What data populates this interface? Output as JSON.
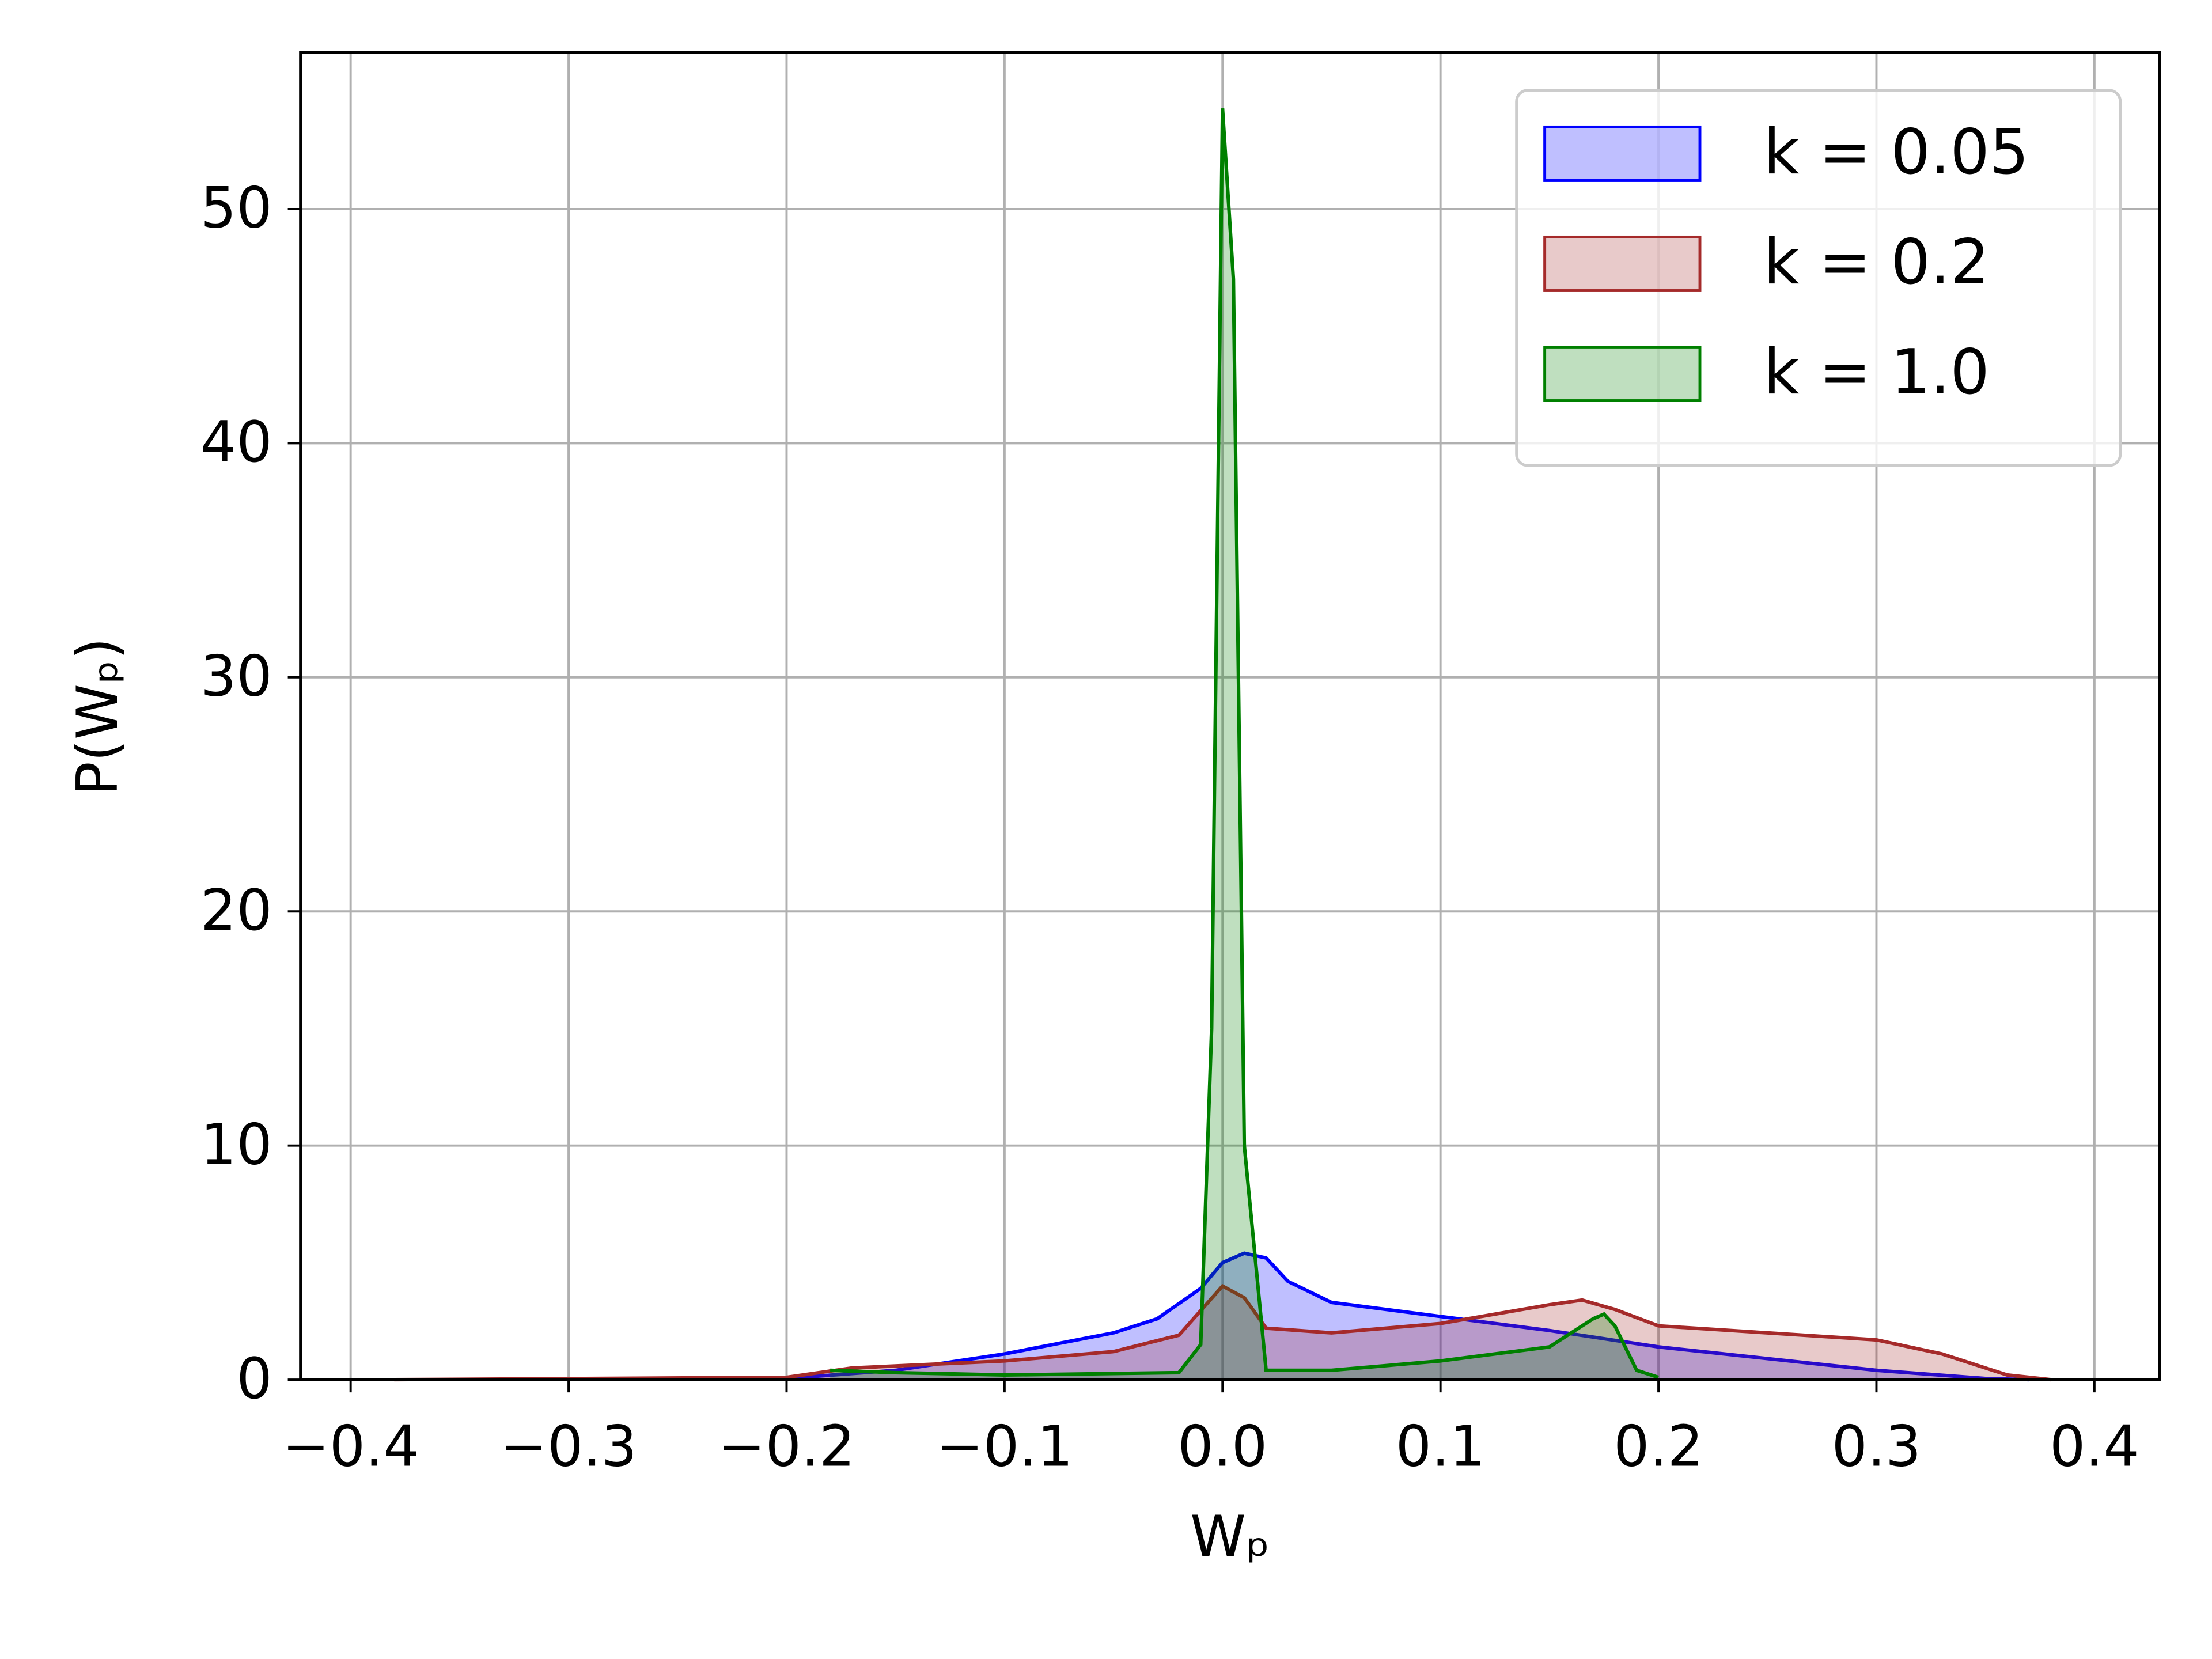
{
  "chart_data": {
    "type": "area",
    "xlabel": "Wₚ",
    "ylabel": "P(Wₚ)",
    "xlim": [
      -0.423,
      0.43
    ],
    "ylim": [
      0,
      56.7
    ],
    "xticks": [
      {
        "value": -0.4,
        "label": "−0.4"
      },
      {
        "value": -0.3,
        "label": "−0.3"
      },
      {
        "value": -0.2,
        "label": "−0.2"
      },
      {
        "value": -0.1,
        "label": "−0.1"
      },
      {
        "value": 0,
        "label": "0.0"
      },
      0.1,
      0.2,
      0.3,
      0.4
    ],
    "yticks": [
      0,
      10,
      20,
      30,
      40,
      50
    ],
    "grid": true,
    "legend": "upper right",
    "series": [
      {
        "name": "k = 0.05",
        "color": "#0000ff",
        "x": [
          -0.2,
          -0.15,
          -0.1,
          -0.05,
          -0.03,
          -0.01,
          0,
          0.01,
          0.02,
          0.03,
          0.05,
          0.1,
          0.15,
          0.2,
          0.25,
          0.3,
          0.35,
          0.37
        ],
        "values": [
          0.05,
          0.4,
          1.1,
          2.0,
          2.6,
          3.9,
          5.0,
          5.4,
          5.2,
          4.2,
          3.3,
          2.7,
          2.1,
          1.4,
          0.9,
          0.4,
          0.05,
          0
        ]
      },
      {
        "name": "k = 0.2",
        "color": "#a52a2a",
        "x": [
          -0.38,
          -0.2,
          -0.17,
          -0.1,
          -0.05,
          -0.02,
          0,
          0.01,
          0.02,
          0.05,
          0.1,
          0.15,
          0.165,
          0.18,
          0.2,
          0.25,
          0.3,
          0.33,
          0.36,
          0.38
        ],
        "values": [
          0,
          0.1,
          0.5,
          0.8,
          1.2,
          1.9,
          4.0,
          3.5,
          2.2,
          2.0,
          2.4,
          3.2,
          3.4,
          3.0,
          2.3,
          2.0,
          1.7,
          1.1,
          0.2,
          0
        ]
      },
      {
        "name": "k = 1.0",
        "color": "#008000",
        "x": [
          -0.18,
          -0.15,
          -0.1,
          -0.02,
          -0.01,
          -0.005,
          0,
          0.005,
          0.01,
          0.02,
          0.05,
          0.1,
          0.15,
          0.17,
          0.175,
          0.18,
          0.19,
          0.2
        ],
        "values": [
          0.4,
          0.3,
          0.2,
          0.3,
          1.5,
          15,
          54.3,
          47,
          10,
          0.4,
          0.4,
          0.8,
          1.4,
          2.6,
          2.8,
          2.3,
          0.4,
          0.1
        ]
      }
    ]
  }
}
